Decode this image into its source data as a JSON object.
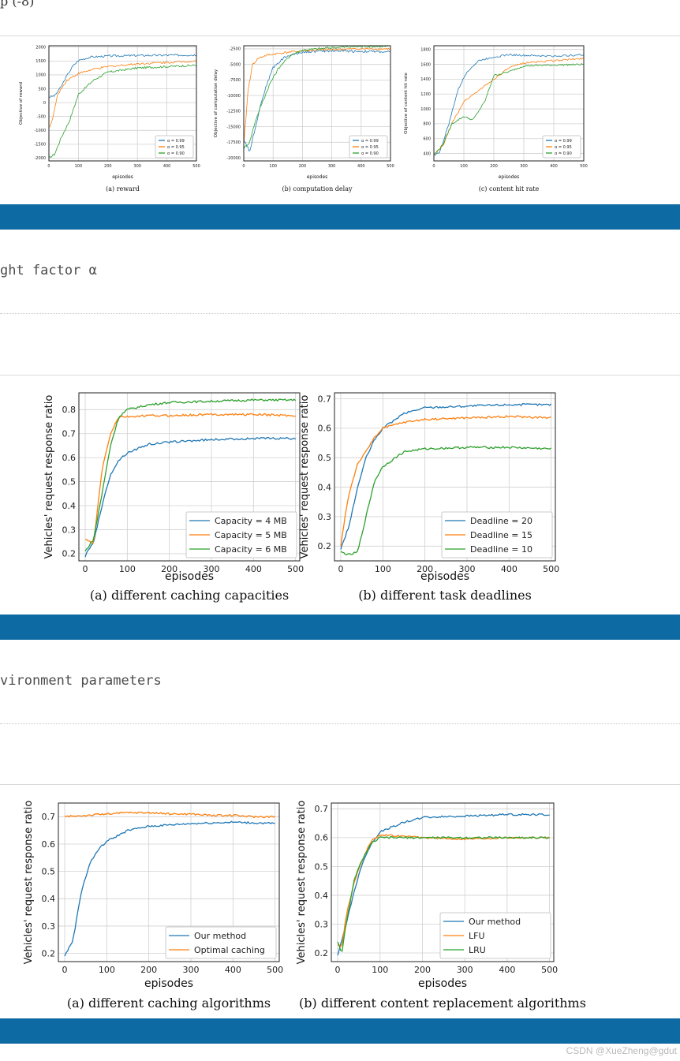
{
  "page": {
    "top_fragment": "p (-8)",
    "caption1": "ght factor α",
    "caption2": "vironment parameters",
    "watermark": "CSDN @XueZheng@gdut",
    "colors": {
      "bar": "#0d6aa3",
      "blue": "#1f77b4",
      "orange": "#ff7f0e",
      "green": "#2ca02c"
    }
  },
  "chart_data": [
    {
      "id": "fig1a",
      "type": "line",
      "caption": "(a) reward",
      "xlabel": "episodes",
      "ylabel": "Objective of reward",
      "xlim": [
        0,
        500
      ],
      "ylim": [
        -2100,
        2050
      ],
      "xticks": [
        "0",
        "100",
        "200",
        "300",
        "400",
        "500"
      ],
      "yticks": [
        "-2000",
        "-1500",
        "-1000",
        "-500",
        "0",
        "500",
        "1000",
        "1500",
        "2000"
      ],
      "grid": true,
      "legend_position": "lower-right",
      "series": [
        {
          "name": "α = 0.99",
          "color": "blue",
          "x": [
            0,
            20,
            40,
            60,
            80,
            100,
            140,
            200,
            300,
            400,
            500
          ],
          "y": [
            200,
            250,
            550,
            950,
            1300,
            1520,
            1640,
            1680,
            1700,
            1710,
            1720
          ]
        },
        {
          "name": "α = 0.95",
          "color": "orange",
          "x": [
            0,
            10,
            30,
            60,
            100,
            150,
            200,
            300,
            400,
            500
          ],
          "y": [
            -900,
            -700,
            300,
            800,
            1050,
            1200,
            1300,
            1400,
            1450,
            1500
          ]
        },
        {
          "name": "α = 0.90",
          "color": "green",
          "x": [
            0,
            20,
            40,
            70,
            100,
            150,
            200,
            300,
            400,
            500
          ],
          "y": [
            -2000,
            -1850,
            -1300,
            -650,
            300,
            800,
            1100,
            1250,
            1300,
            1350
          ]
        }
      ]
    },
    {
      "id": "fig1b",
      "type": "line",
      "caption": "(b) computation delay",
      "xlabel": "episodes",
      "ylabel": "Objective of computation delay",
      "xlim": [
        0,
        500
      ],
      "ylim": [
        -20500,
        -2000
      ],
      "xticks": [
        "0",
        "100",
        "200",
        "300",
        "400",
        "500"
      ],
      "yticks": [
        "-2500",
        "-5000",
        "-7500",
        "-10000",
        "-12500",
        "-15000",
        "-17500",
        "-20000"
      ],
      "grid": true,
      "legend_position": "lower-right",
      "series": [
        {
          "name": "α = 0.99",
          "color": "blue",
          "x": [
            0,
            20,
            40,
            60,
            80,
            100,
            140,
            200,
            300,
            400,
            500
          ],
          "y": [
            -17000,
            -19000,
            -15000,
            -11000,
            -8000,
            -5500,
            -3800,
            -3000,
            -2800,
            -2900,
            -3000
          ]
        },
        {
          "name": "α = 0.95",
          "color": "orange",
          "x": [
            0,
            15,
            30,
            50,
            80,
            120,
            200,
            300,
            400,
            500
          ],
          "y": [
            -18000,
            -9000,
            -5000,
            -4000,
            -3500,
            -3200,
            -2800,
            -2600,
            -2500,
            -2500
          ]
        },
        {
          "name": "α = 0.90",
          "color": "green",
          "x": [
            0,
            20,
            40,
            60,
            90,
            120,
            160,
            200,
            300,
            400,
            500
          ],
          "y": [
            -18500,
            -17500,
            -14000,
            -11500,
            -8000,
            -5500,
            -3500,
            -2700,
            -2300,
            -2100,
            -2100
          ]
        }
      ]
    },
    {
      "id": "fig1c",
      "type": "line",
      "caption": "(c) content hit rate",
      "xlabel": "episodes",
      "ylabel": "Objective of content hit rate",
      "xlim": [
        0,
        500
      ],
      "ylim": [
        300,
        1850
      ],
      "xticks": [
        "0",
        "100",
        "200",
        "300",
        "400",
        "500"
      ],
      "yticks": [
        "400",
        "600",
        "800",
        "1000",
        "1200",
        "1400",
        "1600",
        "1800"
      ],
      "grid": true,
      "legend_position": "lower-right",
      "series": [
        {
          "name": "α = 0.99",
          "color": "blue",
          "x": [
            0,
            20,
            50,
            80,
            110,
            150,
            200,
            250,
            300,
            400,
            500
          ],
          "y": [
            380,
            420,
            800,
            1250,
            1500,
            1650,
            1700,
            1730,
            1720,
            1710,
            1730
          ]
        },
        {
          "name": "α = 0.95",
          "color": "orange",
          "x": [
            0,
            30,
            60,
            100,
            150,
            200,
            250,
            300,
            400,
            500
          ],
          "y": [
            380,
            500,
            800,
            1100,
            1250,
            1400,
            1550,
            1620,
            1650,
            1680
          ]
        },
        {
          "name": "α = 0.90",
          "color": "green",
          "x": [
            0,
            30,
            60,
            100,
            130,
            170,
            200,
            250,
            300,
            400,
            500
          ],
          "y": [
            380,
            520,
            800,
            900,
            850,
            1100,
            1450,
            1500,
            1580,
            1590,
            1600
          ]
        }
      ]
    },
    {
      "id": "fig2a",
      "type": "line",
      "caption": "(a) different caching capacities",
      "xlabel": "episodes",
      "ylabel": "Vehicles' request response ratio",
      "xlim": [
        -15,
        510
      ],
      "ylim": [
        0.17,
        0.87
      ],
      "xticks": [
        "0",
        "100",
        "200",
        "300",
        "400",
        "500"
      ],
      "yticks": [
        "0.2",
        "0.3",
        "0.4",
        "0.5",
        "0.6",
        "0.7",
        "0.8"
      ],
      "grid": true,
      "legend_position": "lower-right",
      "series": [
        {
          "name": "Capacity = 4 MB",
          "color": "blue",
          "x": [
            0,
            20,
            40,
            60,
            80,
            100,
            150,
            200,
            300,
            400,
            500
          ],
          "y": [
            0.19,
            0.25,
            0.4,
            0.53,
            0.59,
            0.62,
            0.655,
            0.665,
            0.675,
            0.68,
            0.68
          ]
        },
        {
          "name": "Capacity = 5 MB",
          "color": "orange",
          "x": [
            0,
            20,
            40,
            60,
            80,
            100,
            150,
            200,
            300,
            400,
            500
          ],
          "y": [
            0.26,
            0.24,
            0.55,
            0.7,
            0.77,
            0.77,
            0.775,
            0.775,
            0.78,
            0.78,
            0.775
          ]
        },
        {
          "name": "Capacity = 6 MB",
          "color": "green",
          "x": [
            0,
            20,
            40,
            60,
            80,
            100,
            150,
            200,
            300,
            400,
            500
          ],
          "y": [
            0.21,
            0.26,
            0.45,
            0.65,
            0.77,
            0.8,
            0.82,
            0.83,
            0.835,
            0.84,
            0.84
          ]
        }
      ]
    },
    {
      "id": "fig2b",
      "type": "line",
      "caption": "(b) different task deadlines",
      "xlabel": "episodes",
      "ylabel": "Vehicles' request response ratio",
      "xlim": [
        -15,
        510
      ],
      "ylim": [
        0.15,
        0.72
      ],
      "xticks": [
        "0",
        "100",
        "200",
        "300",
        "400",
        "500"
      ],
      "yticks": [
        "0.2",
        "0.3",
        "0.4",
        "0.5",
        "0.6",
        "0.7"
      ],
      "grid": true,
      "legend_position": "lower-right",
      "series": [
        {
          "name": "Deadline = 20",
          "color": "blue",
          "x": [
            0,
            20,
            40,
            60,
            80,
            100,
            150,
            200,
            300,
            400,
            500
          ],
          "y": [
            0.19,
            0.27,
            0.4,
            0.5,
            0.56,
            0.6,
            0.65,
            0.67,
            0.675,
            0.68,
            0.68
          ]
        },
        {
          "name": "Deadline = 15",
          "color": "orange",
          "x": [
            0,
            10,
            20,
            40,
            60,
            80,
            100,
            150,
            200,
            300,
            400,
            500
          ],
          "y": [
            0.2,
            0.3,
            0.38,
            0.48,
            0.52,
            0.57,
            0.6,
            0.62,
            0.63,
            0.635,
            0.64,
            0.635
          ]
        },
        {
          "name": "Deadline = 10",
          "color": "green",
          "x": [
            0,
            20,
            40,
            60,
            80,
            100,
            150,
            200,
            300,
            400,
            500
          ],
          "y": [
            0.18,
            0.17,
            0.18,
            0.3,
            0.42,
            0.47,
            0.52,
            0.53,
            0.535,
            0.535,
            0.53
          ]
        }
      ]
    },
    {
      "id": "fig3a",
      "type": "line",
      "caption": "(a) different caching algorithms",
      "xlabel": "episodes",
      "ylabel": "Vehicles' request response ratio",
      "xlim": [
        -15,
        510
      ],
      "ylim": [
        0.17,
        0.75
      ],
      "xticks": [
        "0",
        "100",
        "200",
        "300",
        "400",
        "500"
      ],
      "yticks": [
        "0.2",
        "0.3",
        "0.4",
        "0.5",
        "0.6",
        "0.7"
      ],
      "grid": true,
      "legend_position": "lower-right",
      "series": [
        {
          "name": "Our method",
          "color": "blue",
          "x": [
            0,
            20,
            40,
            60,
            80,
            100,
            150,
            200,
            300,
            400,
            500
          ],
          "y": [
            0.19,
            0.25,
            0.43,
            0.53,
            0.58,
            0.61,
            0.65,
            0.665,
            0.675,
            0.68,
            0.675
          ]
        },
        {
          "name": "Optimal caching",
          "color": "orange",
          "x": [
            0,
            50,
            100,
            150,
            200,
            250,
            300,
            350,
            400,
            450,
            500
          ],
          "y": [
            0.7,
            0.705,
            0.71,
            0.715,
            0.715,
            0.71,
            0.71,
            0.705,
            0.705,
            0.7,
            0.7
          ]
        }
      ]
    },
    {
      "id": "fig3b",
      "type": "line",
      "caption": "(b) different content replacement algorithms",
      "xlabel": "episodes",
      "ylabel": "Vehicles' request response ratio",
      "xlim": [
        -15,
        510
      ],
      "ylim": [
        0.17,
        0.72
      ],
      "xticks": [
        "0",
        "100",
        "200",
        "300",
        "400",
        "500"
      ],
      "yticks": [
        "0.2",
        "0.3",
        "0.4",
        "0.5",
        "0.6",
        "0.7"
      ],
      "grid": true,
      "legend_position": "lower-right",
      "series": [
        {
          "name": "Our method",
          "color": "blue",
          "x": [
            0,
            20,
            40,
            60,
            80,
            100,
            150,
            200,
            300,
            400,
            500
          ],
          "y": [
            0.19,
            0.3,
            0.42,
            0.52,
            0.58,
            0.62,
            0.65,
            0.67,
            0.675,
            0.68,
            0.68
          ]
        },
        {
          "name": "LFU",
          "color": "orange",
          "x": [
            0,
            10,
            20,
            40,
            60,
            80,
            100,
            150,
            200,
            300,
            400,
            500
          ],
          "y": [
            0.23,
            0.22,
            0.33,
            0.45,
            0.53,
            0.59,
            0.61,
            0.605,
            0.6,
            0.595,
            0.6,
            0.6
          ]
        },
        {
          "name": "LRU",
          "color": "green",
          "x": [
            0,
            10,
            20,
            40,
            60,
            80,
            100,
            150,
            200,
            300,
            400,
            500
          ],
          "y": [
            0.24,
            0.2,
            0.3,
            0.46,
            0.53,
            0.58,
            0.6,
            0.6,
            0.6,
            0.6,
            0.6,
            0.6
          ]
        }
      ]
    }
  ]
}
